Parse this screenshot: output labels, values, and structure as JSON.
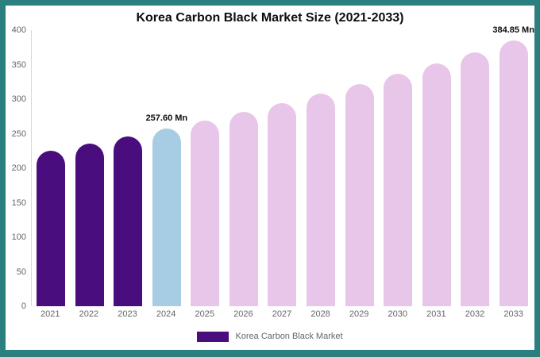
{
  "frame": {
    "border_color": "#2b7f7f"
  },
  "chart_data": {
    "type": "bar",
    "title": "Korea Carbon Black Market Size (2021-2033)",
    "categories": [
      "2021",
      "2022",
      "2023",
      "2024",
      "2025",
      "2026",
      "2027",
      "2028",
      "2029",
      "2030",
      "2031",
      "2032",
      "2033"
    ],
    "values": [
      225.3,
      235.6,
      246.3,
      257.6,
      269.4,
      281.7,
      294.5,
      308.0,
      322.1,
      336.8,
      352.2,
      368.3,
      384.85
    ],
    "bar_colors": [
      "#490d7d",
      "#490d7d",
      "#490d7d",
      "#a6cde3",
      "#e7c6e9",
      "#e7c6e9",
      "#e7c6e9",
      "#e7c6e9",
      "#e7c6e9",
      "#e7c6e9",
      "#e7c6e9",
      "#e7c6e9",
      "#e7c6e9"
    ],
    "annotations": [
      {
        "index": 3,
        "text": "257.60 Mn"
      },
      {
        "index": 12,
        "text": "384.85 Mn"
      }
    ],
    "xlabel": "",
    "ylabel": "",
    "ylim": [
      0,
      400
    ],
    "yticks": [
      0,
      50,
      100,
      150,
      200,
      250,
      300,
      350,
      400
    ],
    "grid": false,
    "legend_position": "bottom"
  },
  "chart": {
    "legend": {
      "label": "Korea Carbon Black Market",
      "swatch_color": "#490d7d"
    }
  }
}
